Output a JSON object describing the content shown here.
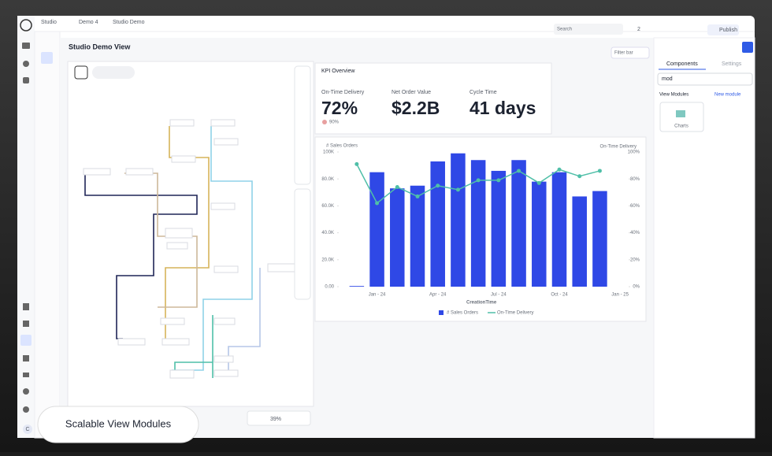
{
  "app": {
    "breadcrumb": [
      "Studio",
      "Demo 4",
      "Studio Demo"
    ],
    "search": "Search",
    "count": "2",
    "publish": "Publish",
    "avatar": "C"
  },
  "view": {
    "title": "Studio Demo View",
    "filter_bar": "Filter bar",
    "zoom": "39%"
  },
  "panel": {
    "tabs": [
      "Components",
      "Settings"
    ],
    "search": "mod",
    "section": "View Modules",
    "new_module": "New module",
    "tiles": [
      "Charts"
    ]
  },
  "kpi": {
    "title": "KPI Overview",
    "metrics": [
      {
        "label": "On-Time Delivery",
        "value": "72%",
        "sub": "90%"
      },
      {
        "label": "Net Order Value",
        "value": "$2.2B"
      },
      {
        "label": "Cycle Time",
        "value": "41 days"
      }
    ]
  },
  "chart_data": {
    "type": "combo",
    "categories": [
      null,
      "Jan - 24",
      null,
      null,
      "Apr - 24",
      null,
      null,
      "Jul - 24",
      null,
      null,
      "Oct - 24",
      null,
      null,
      "Jan - 25"
    ],
    "series": [
      {
        "name": "# Sales Orders",
        "type": "bar",
        "color": "#2f48e6",
        "values": [
          500,
          85000,
          73000,
          75000,
          93000,
          99000,
          94000,
          86000,
          94000,
          78000,
          85000,
          67000,
          71000,
          null
        ]
      },
      {
        "name": "On-Time Delivery",
        "type": "line",
        "axis": "y2",
        "color": "#4fbfa8",
        "values": [
          91,
          62,
          74,
          67,
          75,
          72,
          79,
          79,
          86,
          77,
          87,
          82,
          86,
          null
        ]
      }
    ],
    "ylim": [
      0,
      100000
    ],
    "yticks": [
      {
        "value": 0,
        "label": "0.00"
      },
      {
        "value": 20000,
        "label": "20.0K"
      },
      {
        "value": 40000,
        "label": "40.0K"
      },
      {
        "value": 60000,
        "label": "60.0K"
      },
      {
        "value": 80000,
        "label": "80.0K"
      },
      {
        "value": 100000,
        "label": "100K"
      }
    ],
    "y2lim": [
      0,
      100
    ],
    "y2ticks": [
      {
        "value": 0,
        "label": "0%"
      },
      {
        "value": 20,
        "label": "20%"
      },
      {
        "value": 40,
        "label": "40%"
      },
      {
        "value": 60,
        "label": "60%"
      },
      {
        "value": 80,
        "label": "80%"
      },
      {
        "value": 100,
        "label": "100%"
      }
    ],
    "x_label": "CreationTime",
    "y_label": "# Sales Orders",
    "y2_label": "On-Time Delivery",
    "legend": "bottom",
    "grid": false
  },
  "caption": "Scalable View Modules"
}
